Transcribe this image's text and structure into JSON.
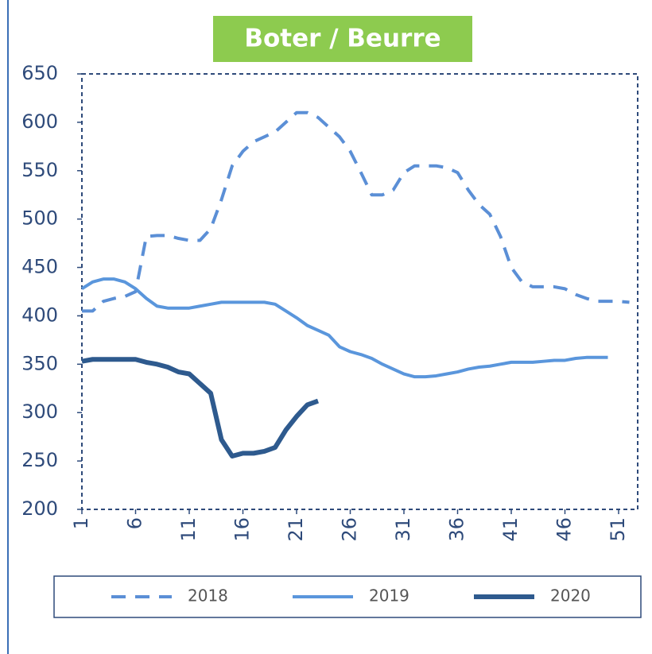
{
  "chart_data": {
    "type": "line",
    "title": "Boter / Beurre",
    "x": [
      1,
      2,
      3,
      4,
      5,
      6,
      7,
      8,
      9,
      10,
      11,
      12,
      13,
      14,
      15,
      16,
      17,
      18,
      19,
      20,
      21,
      22,
      23,
      24,
      25,
      26,
      27,
      28,
      29,
      30,
      31,
      32,
      33,
      34,
      35,
      36,
      37,
      38,
      39,
      40,
      41,
      42,
      43,
      44,
      45,
      46,
      47,
      48,
      49,
      50,
      51,
      52
    ],
    "series": [
      {
        "name": "2018",
        "color": "#5b8fd6",
        "line_style": "dashed",
        "values": [
          405,
          405,
          415,
          418,
          420,
          425,
          482,
          483,
          483,
          480,
          478,
          478,
          490,
          520,
          555,
          570,
          580,
          585,
          590,
          600,
          610,
          610,
          605,
          595,
          585,
          570,
          548,
          525,
          525,
          530,
          548,
          555,
          555,
          555,
          553,
          548,
          530,
          515,
          505,
          482,
          450,
          435,
          430,
          430,
          430,
          428,
          422,
          418,
          415,
          415,
          415,
          414
        ]
      },
      {
        "name": "2019",
        "color": "#5a96dc",
        "line_style": "solid",
        "values": [
          428,
          435,
          438,
          438,
          435,
          428,
          418,
          410,
          408,
          408,
          408,
          410,
          412,
          414,
          414,
          414,
          414,
          414,
          412,
          405,
          398,
          390,
          385,
          380,
          368,
          363,
          360,
          356,
          350,
          345,
          340,
          337,
          337,
          338,
          340,
          342,
          345,
          347,
          348,
          350,
          352,
          352,
          352,
          353,
          354,
          354,
          356,
          357,
          357,
          357,
          null,
          null
        ]
      },
      {
        "name": "2020",
        "color": "#2e5a8e",
        "line_style": "thick",
        "values": [
          353,
          355,
          355,
          355,
          355,
          355,
          352,
          350,
          347,
          342,
          340,
          330,
          320,
          272,
          255,
          258,
          258,
          260,
          264,
          282,
          296,
          308,
          312,
          null,
          null,
          null,
          null,
          null,
          null,
          null,
          null,
          null,
          null,
          null,
          null,
          null,
          null,
          null,
          null,
          null,
          null,
          null,
          null,
          null,
          null,
          null,
          null,
          null,
          null,
          null,
          null,
          null
        ]
      }
    ],
    "xlim": [
      1,
      53
    ],
    "xticks": [
      1,
      6,
      11,
      16,
      21,
      26,
      31,
      36,
      41,
      46,
      51
    ],
    "ylim": [
      200,
      650
    ],
    "yticks": [
      200,
      250,
      300,
      350,
      400,
      450,
      500,
      550,
      600,
      650
    ]
  }
}
